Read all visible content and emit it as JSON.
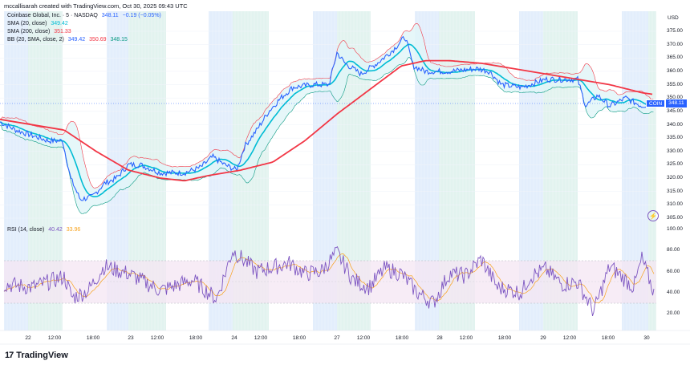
{
  "header": {
    "text": "mccallisarah created with TradingView.com, Oct 30, 2025 09:43 UTC"
  },
  "legend": {
    "symbol": {
      "name": "Coinbase Global, Inc. · 5 · NASDAQ",
      "price": "348.11",
      "change": "−0.19 (−0.05%)"
    },
    "sma20": {
      "label": "SMA (20, close)",
      "value": "349.42"
    },
    "sma200": {
      "label": "SMA (200, close)",
      "value": "351.33"
    },
    "bb": {
      "label": "BB (20, SMA, close, 2)",
      "basis": "349.42",
      "upper": "350.69",
      "lower": "348.15"
    },
    "rsi": {
      "label": "RSI (14, close)",
      "value": "40.42",
      "ma": "33.96"
    }
  },
  "price_tag": {
    "symbol": "COIN",
    "price": "348.11"
  },
  "currency": "USD",
  "brand": {
    "name": "TradingView"
  },
  "colors": {
    "price": "#2962ff",
    "sma20": "#00bcd4",
    "sma200": "#f23645",
    "bb_upper": "#f23645",
    "bb_lower": "#089981",
    "rsi": "#7e57c2",
    "rsi_ma": "#f7a21b",
    "band_blue": "#e3eefc",
    "band_green": "#e2f3ef",
    "rsi_zone": "#f4e6f3"
  },
  "chart_data": [
    {
      "type": "line",
      "title": "Coinbase Global, Inc. · 5 · NASDAQ",
      "xlabel": "",
      "ylabel": "USD",
      "ylim": [
        303,
        378
      ],
      "y_ticks": [
        "375.00",
        "370.00",
        "365.00",
        "360.00",
        "355.00",
        "350.00",
        "345.00",
        "340.00",
        "335.00",
        "330.00",
        "325.00",
        "320.00",
        "315.00",
        "310.00",
        "305.00"
      ],
      "x_ticks": [
        "22",
        "12:00",
        "18:00",
        "23",
        "12:00",
        "18:00",
        "24",
        "12:00",
        "18:00",
        "27",
        "12:00",
        "18:00",
        "28",
        "12:00",
        "18:00",
        "29",
        "12:00",
        "18:00",
        "30"
      ],
      "series": [
        {
          "name": "COIN price",
          "x": [
            0,
            20,
            40,
            60,
            78,
            88,
            100,
            115,
            130,
            145,
            160,
            175,
            200,
            215,
            230,
            250,
            265,
            280,
            295,
            305,
            320,
            335,
            350,
            365,
            390,
            410,
            420,
            430,
            450,
            470,
            490,
            505,
            515,
            530,
            560,
            595,
            610,
            625,
            650,
            680,
            700,
            720,
            730,
            745,
            760,
            780,
            800,
            815
          ],
          "values": [
            341,
            338,
            336,
            334,
            334,
            320,
            312,
            313,
            318,
            320,
            325,
            325,
            322,
            322,
            322,
            324,
            328,
            325,
            323,
            332,
            338,
            345,
            350,
            354,
            355,
            355,
            367,
            363,
            359,
            363,
            368,
            373,
            362,
            360,
            360,
            361,
            360,
            355,
            354,
            357,
            357,
            357,
            347,
            351,
            347,
            350,
            347,
            348.11
          ]
        },
        {
          "name": "SMA (200, close)",
          "x": [
            0,
            40,
            80,
            120,
            160,
            200,
            230,
            260,
            300,
            340,
            380,
            420,
            460,
            500,
            530,
            560,
            600,
            640,
            680,
            720,
            760,
            800,
            815
          ],
          "values": [
            342,
            340,
            338,
            330,
            323,
            320,
            319,
            321,
            323,
            326,
            334,
            344,
            353,
            362,
            364,
            364,
            363,
            361,
            359,
            357,
            355,
            352,
            351.33
          ]
        },
        {
          "name": "RSI (14, close)",
          "x": [
            5,
            40,
            80,
            90,
            110,
            130,
            160,
            200,
            240,
            270,
            290,
            320,
            360,
            380,
            400,
            420,
            440,
            460,
            480,
            500,
            520,
            540,
            560,
            580,
            600,
            620,
            650,
            660,
            680,
            700,
            720,
            740,
            760,
            790,
            800,
            815
          ],
          "values": [
            48,
            45,
            55,
            35,
            42,
            65,
            58,
            42,
            52,
            34,
            80,
            60,
            68,
            58,
            60,
            78,
            52,
            45,
            63,
            58,
            40,
            30,
            58,
            56,
            72,
            45,
            40,
            55,
            62,
            48,
            50,
            22,
            65,
            45,
            72,
            40.42
          ]
        }
      ],
      "rsi_panel": {
        "ylim": [
          10,
          100
        ],
        "y_ticks": [
          "100.00",
          "80.00",
          "60.00",
          "40.00",
          "20.00"
        ],
        "zone": [
          30,
          70
        ]
      }
    }
  ]
}
